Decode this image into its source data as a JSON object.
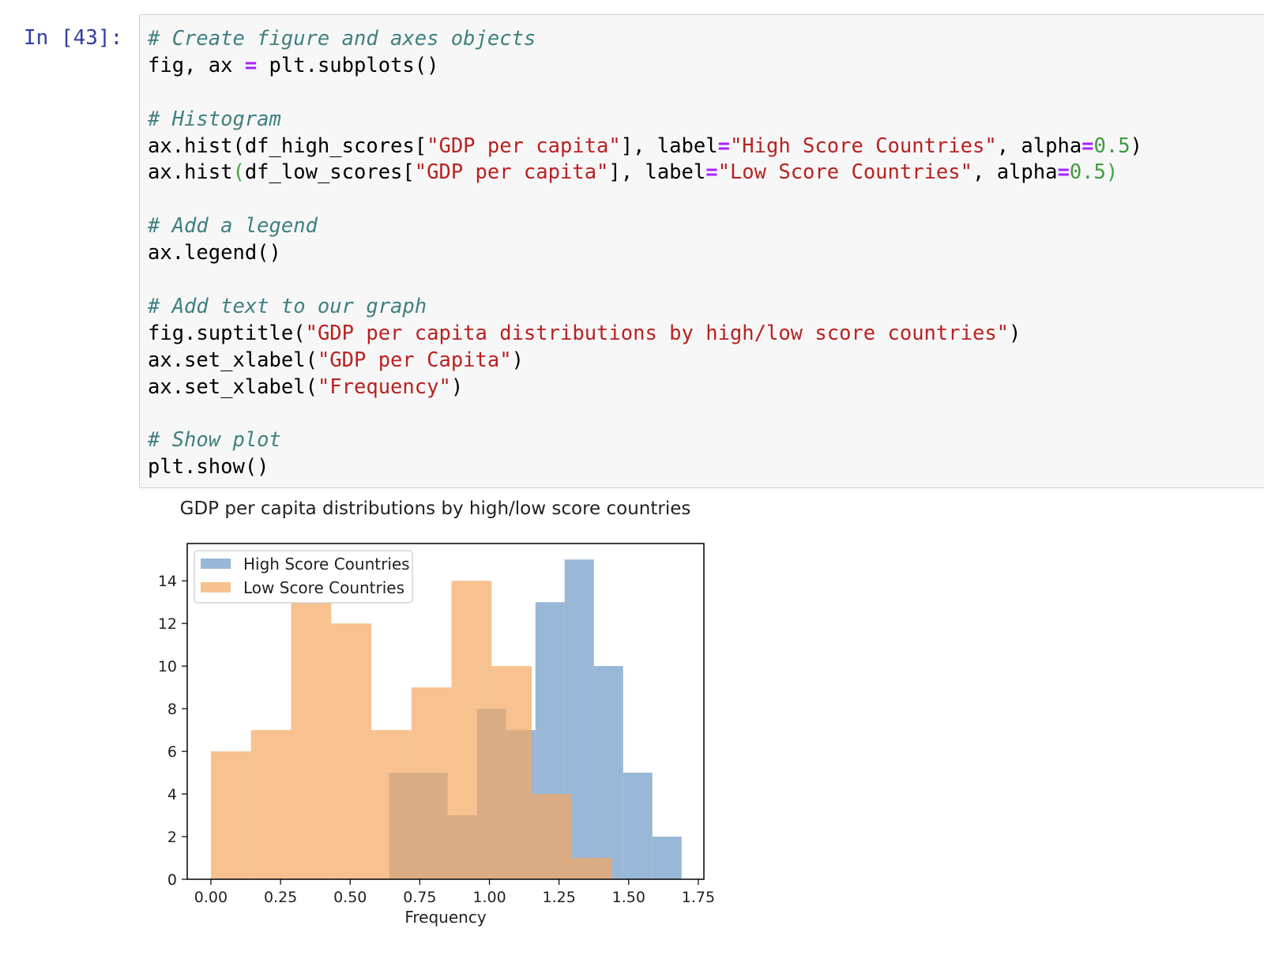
{
  "cell": {
    "prompt": "In [43]:",
    "lines": [
      [
        {
          "t": "# Create figure and axes objects",
          "c": "com"
        }
      ],
      [
        {
          "t": "fig, ax "
        },
        {
          "t": "=",
          "c": "op"
        },
        {
          "t": " plt.subplots()"
        }
      ],
      [],
      [
        {
          "t": "# Histogram",
          "c": "com"
        }
      ],
      [
        {
          "t": "ax.hist(df_high_scores["
        },
        {
          "t": "\"GDP per capita\"",
          "c": "str"
        },
        {
          "t": "], label"
        },
        {
          "t": "=",
          "c": "op"
        },
        {
          "t": "\"High Score Countries\"",
          "c": "str"
        },
        {
          "t": ", alpha"
        },
        {
          "t": "=",
          "c": "op"
        },
        {
          "t": "0.5",
          "c": "num"
        },
        {
          "t": ")"
        }
      ],
      [
        {
          "t": "ax.hist"
        },
        {
          "t": "(",
          "c": "par"
        },
        {
          "t": "df_low_scores["
        },
        {
          "t": "\"GDP per capita\"",
          "c": "str"
        },
        {
          "t": "], label"
        },
        {
          "t": "=",
          "c": "op"
        },
        {
          "t": "\"Low Score Countries\"",
          "c": "str"
        },
        {
          "t": ", alpha"
        },
        {
          "t": "=",
          "c": "op"
        },
        {
          "t": "0.5",
          "c": "num"
        },
        {
          "t": ")",
          "c": "par"
        }
      ],
      [],
      [
        {
          "t": "# Add a legend",
          "c": "com"
        }
      ],
      [
        {
          "t": "ax.legend()"
        }
      ],
      [],
      [
        {
          "t": "# Add text to our graph",
          "c": "com"
        }
      ],
      [
        {
          "t": "fig.suptitle("
        },
        {
          "t": "\"GDP per capita distributions by high/low score countries\"",
          "c": "str"
        },
        {
          "t": ")"
        }
      ],
      [
        {
          "t": "ax.set_xlabel("
        },
        {
          "t": "\"GDP per Capita\"",
          "c": "str"
        },
        {
          "t": ")"
        }
      ],
      [
        {
          "t": "ax.set_xlabel("
        },
        {
          "t": "\"Frequency\"",
          "c": "str"
        },
        {
          "t": ")"
        }
      ],
      [],
      [
        {
          "t": "# Show plot",
          "c": "com"
        }
      ],
      [
        {
          "t": "plt.show()"
        }
      ]
    ]
  },
  "colors": {
    "high": "#6e99c4",
    "low": "#f4a661",
    "comment": "#408080",
    "string": "#ba2121",
    "operator": "#aa22ff",
    "number": "#409a40"
  },
  "chart_data": {
    "type": "bar",
    "title": "GDP per capita distributions by high/low score countries",
    "xlabel": "Frequency",
    "ylabel": "",
    "xlim": [
      -0.085,
      1.77
    ],
    "ylim": [
      0,
      15.75
    ],
    "xticks": [
      "0.00",
      "0.25",
      "0.50",
      "0.75",
      "1.00",
      "1.25",
      "1.50",
      "1.75"
    ],
    "xtick_values": [
      0,
      0.25,
      0.5,
      0.75,
      1.0,
      1.25,
      1.5,
      1.75
    ],
    "yticks": [
      "0",
      "2",
      "4",
      "6",
      "8",
      "10",
      "12",
      "14"
    ],
    "ytick_values": [
      0,
      2,
      4,
      6,
      8,
      10,
      12,
      14
    ],
    "grid": false,
    "legend": "upper left",
    "alpha": 0.5,
    "series": [
      {
        "name": "High Score Countries",
        "bin_edges": [
          0.64,
          0.745,
          0.85,
          0.955,
          1.06,
          1.165,
          1.27,
          1.375,
          1.48,
          1.585,
          1.69
        ],
        "counts": [
          5,
          5,
          3,
          8,
          7,
          13,
          15,
          10,
          5,
          2
        ]
      },
      {
        "name": "Low Score Countries",
        "bin_edges": [
          0.0,
          0.144,
          0.288,
          0.432,
          0.576,
          0.72,
          0.864,
          1.008,
          1.152,
          1.296,
          1.44
        ],
        "counts": [
          6,
          7,
          13,
          12,
          7,
          9,
          14,
          10,
          4,
          1
        ]
      }
    ]
  }
}
